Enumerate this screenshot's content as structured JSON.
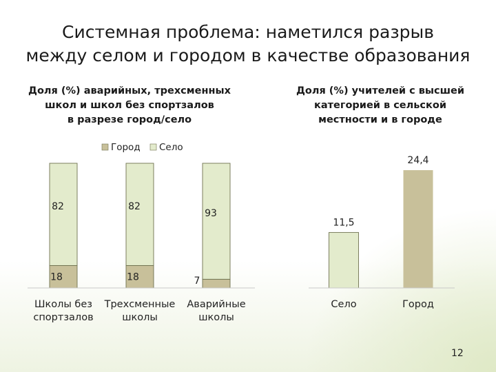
{
  "slide": {
    "title": "Системная проблема: наметился разрыв\nмежду селом и городом в качестве образования",
    "page_number": "12"
  },
  "colors": {
    "gorod": "#c8c09a",
    "selo": "#e3ebcc",
    "bar_border": "#6f7250"
  },
  "chart_data": [
    {
      "type": "bar",
      "stacked": true,
      "title": "Доля (%) аварийных, трехсменных\nшкол и школ без спортзалов\nв разрезе город/село",
      "categories": [
        "Школы без\nспортзалов",
        "Трехсменные\nшколы",
        "Аварийные\nшколы"
      ],
      "series": [
        {
          "name": "Город",
          "values": [
            18,
            18,
            7
          ]
        },
        {
          "name": "Село",
          "values": [
            82,
            82,
            93
          ]
        }
      ],
      "ylim": [
        0,
        100
      ],
      "legend": "top",
      "grid": false
    },
    {
      "type": "bar",
      "title": "Доля (%) учителей с высшей\nкатегорией в сельской\nместности и в городе",
      "categories": [
        "Село",
        "Город"
      ],
      "values": [
        11.5,
        24.4
      ],
      "value_labels": [
        "11,5",
        "24,4"
      ],
      "ylim": [
        0,
        24.4
      ],
      "grid": false
    }
  ]
}
